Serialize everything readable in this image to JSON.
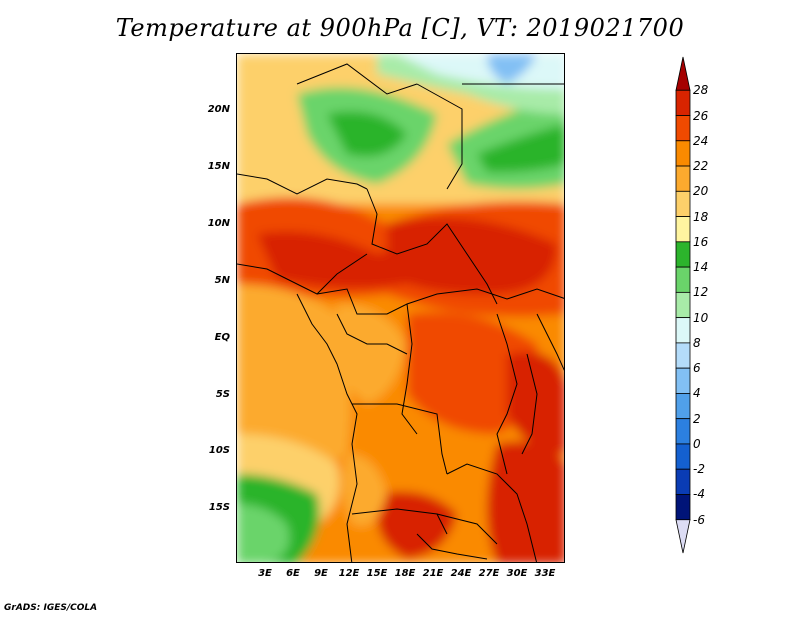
{
  "title": "Temperature at 900hPa [C], VT: 2019021700",
  "footer": "GrADS: IGES/COLA",
  "map": {
    "lat_range": [
      -19.5,
      25
    ],
    "lon_range": [
      0,
      35
    ],
    "lat_labels": [
      "20N",
      "15N",
      "10N",
      "5N",
      "EQ",
      "5S",
      "10S",
      "15S"
    ],
    "lon_labels": [
      "3E",
      "6E",
      "9E",
      "12E",
      "15E",
      "18E",
      "21E",
      "24E",
      "27E",
      "30E",
      "33E"
    ]
  },
  "colorbar": {
    "levels": [
      "28",
      "26",
      "24",
      "22",
      "20",
      "18",
      "16",
      "14",
      "12",
      "10",
      "8",
      "6",
      "4",
      "2",
      "0",
      "-2",
      "-4",
      "-6"
    ],
    "colors": [
      "#a50000",
      "#d82400",
      "#f04a00",
      "#fa8a00",
      "#fcaa2e",
      "#fdd06a",
      "#fff5a0",
      "#2cb42c",
      "#6ad46a",
      "#a8eba8",
      "#dcf8f8",
      "#b4dcfa",
      "#82c0f4",
      "#50a0ea",
      "#2c80e0",
      "#1460d0",
      "#0a3cb4",
      "#001478",
      "#dcdcf4"
    ]
  }
}
